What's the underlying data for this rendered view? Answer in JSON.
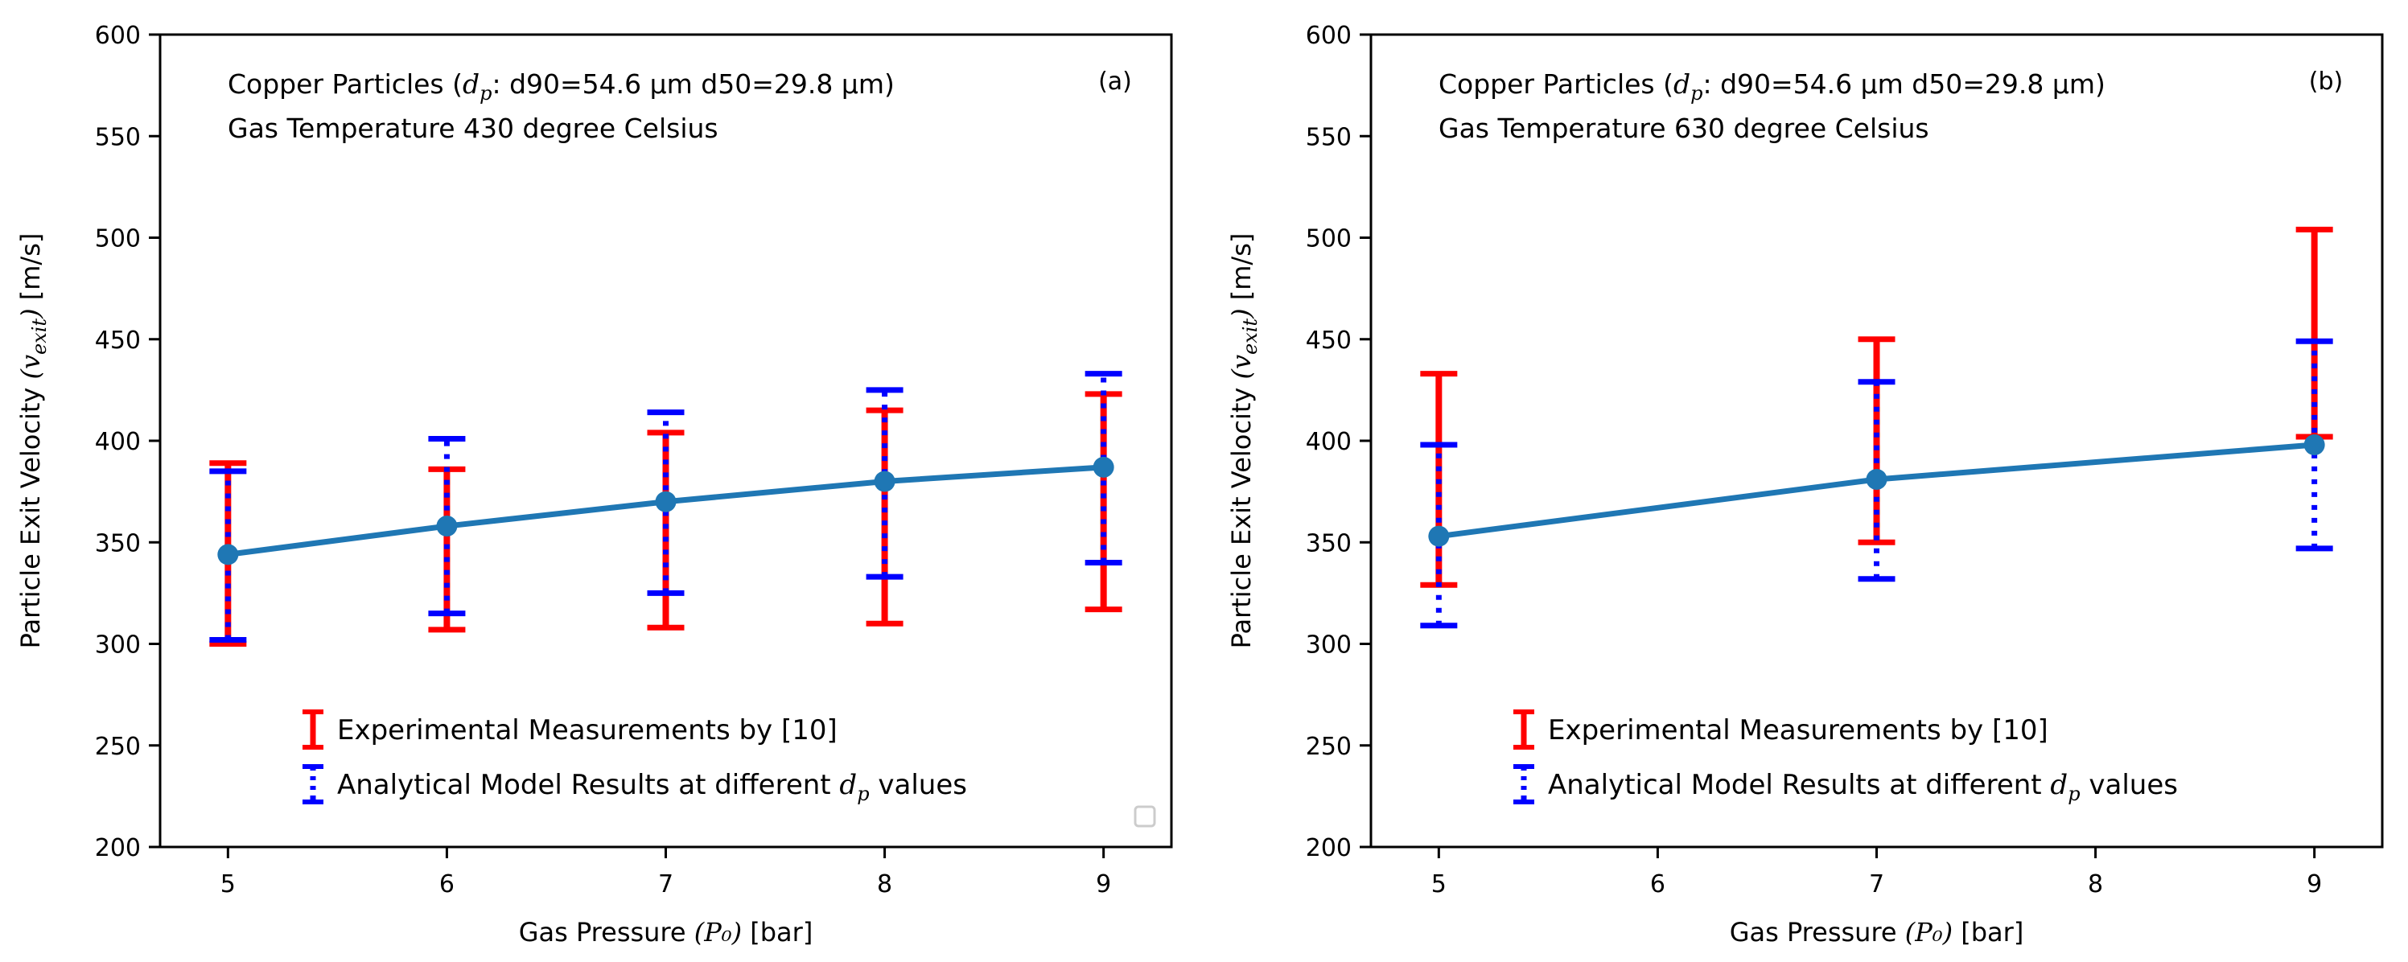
{
  "colors": {
    "experimental": "#ff0000",
    "analytical": "#0000ff",
    "model_line": "#1f77b4",
    "marker": "#1f77b4"
  },
  "chart_data": [
    {
      "type": "line",
      "panel": "(a)",
      "note_line1_prefix": "Copper Particles (",
      "note_line1_symbol": "d",
      "note_line1_sub": "p",
      "note_line1_suffix": ": d90=54.6 μm d50=29.8 μm)",
      "note_line2": "Gas Temperature 430 degree Celsius",
      "xlabel_prefix": "Gas Pressure ",
      "xlabel_symbol": "(P₀)",
      "xlabel_suffix": " [bar]",
      "ylabel_prefix": "Particle Exit Velocity ",
      "ylabel_symbol": "(v",
      "ylabel_sub": "exit",
      "ylabel_close": ")",
      "ylabel_suffix": " [m/s]",
      "xlim": [
        4.69,
        9.31
      ],
      "ylim": [
        200,
        600
      ],
      "x_ticks": [
        5,
        6,
        7,
        8,
        9
      ],
      "y_ticks": [
        200,
        250,
        300,
        350,
        400,
        450,
        500,
        550,
        600
      ],
      "x": [
        5,
        6,
        7,
        8,
        9
      ],
      "model_values": [
        344,
        358,
        370,
        380,
        387
      ],
      "experimental_range": [
        [
          300,
          389
        ],
        [
          307,
          386
        ],
        [
          308,
          404
        ],
        [
          310,
          415
        ],
        [
          317,
          423
        ]
      ],
      "analytical_range": [
        [
          302,
          385
        ],
        [
          315,
          401
        ],
        [
          325,
          414
        ],
        [
          333,
          425
        ],
        [
          340,
          433
        ]
      ],
      "legend": {
        "experimental": "Experimental Measurements by [10]",
        "analytical_prefix": "Analytical Model Results at different ",
        "analytical_symbol": "d",
        "analytical_sub": "p",
        "analytical_suffix": " values"
      }
    },
    {
      "type": "line",
      "panel": "(b)",
      "note_line1_prefix": "Copper Particles (",
      "note_line1_symbol": "d",
      "note_line1_sub": "p",
      "note_line1_suffix": ": d90=54.6 μm d50=29.8 μm)",
      "note_line2": "Gas Temperature 630 degree Celsius",
      "xlabel_prefix": "Gas Pressure ",
      "xlabel_symbol": "(P₀)",
      "xlabel_suffix": " [bar]",
      "ylabel_prefix": "Particle Exit Velocity ",
      "ylabel_symbol": "(v",
      "ylabel_sub": "exit",
      "ylabel_close": ")",
      "ylabel_suffix": " [m/s]",
      "xlim": [
        4.69,
        9.31
      ],
      "ylim": [
        200,
        600
      ],
      "x_ticks": [
        5,
        6,
        7,
        8,
        9
      ],
      "y_ticks": [
        200,
        250,
        300,
        350,
        400,
        450,
        500,
        550,
        600
      ],
      "x": [
        5,
        7,
        9
      ],
      "model_values": [
        353,
        381,
        398
      ],
      "experimental_range": [
        [
          329,
          433
        ],
        [
          350,
          450
        ],
        [
          402,
          504
        ]
      ],
      "analytical_range": [
        [
          309,
          398
        ],
        [
          332,
          429
        ],
        [
          347,
          449
        ]
      ],
      "legend": {
        "experimental": "Experimental Measurements by [10]",
        "analytical_prefix": "Analytical Model Results at different ",
        "analytical_symbol": "d",
        "analytical_sub": "p",
        "analytical_suffix": " values"
      }
    }
  ]
}
